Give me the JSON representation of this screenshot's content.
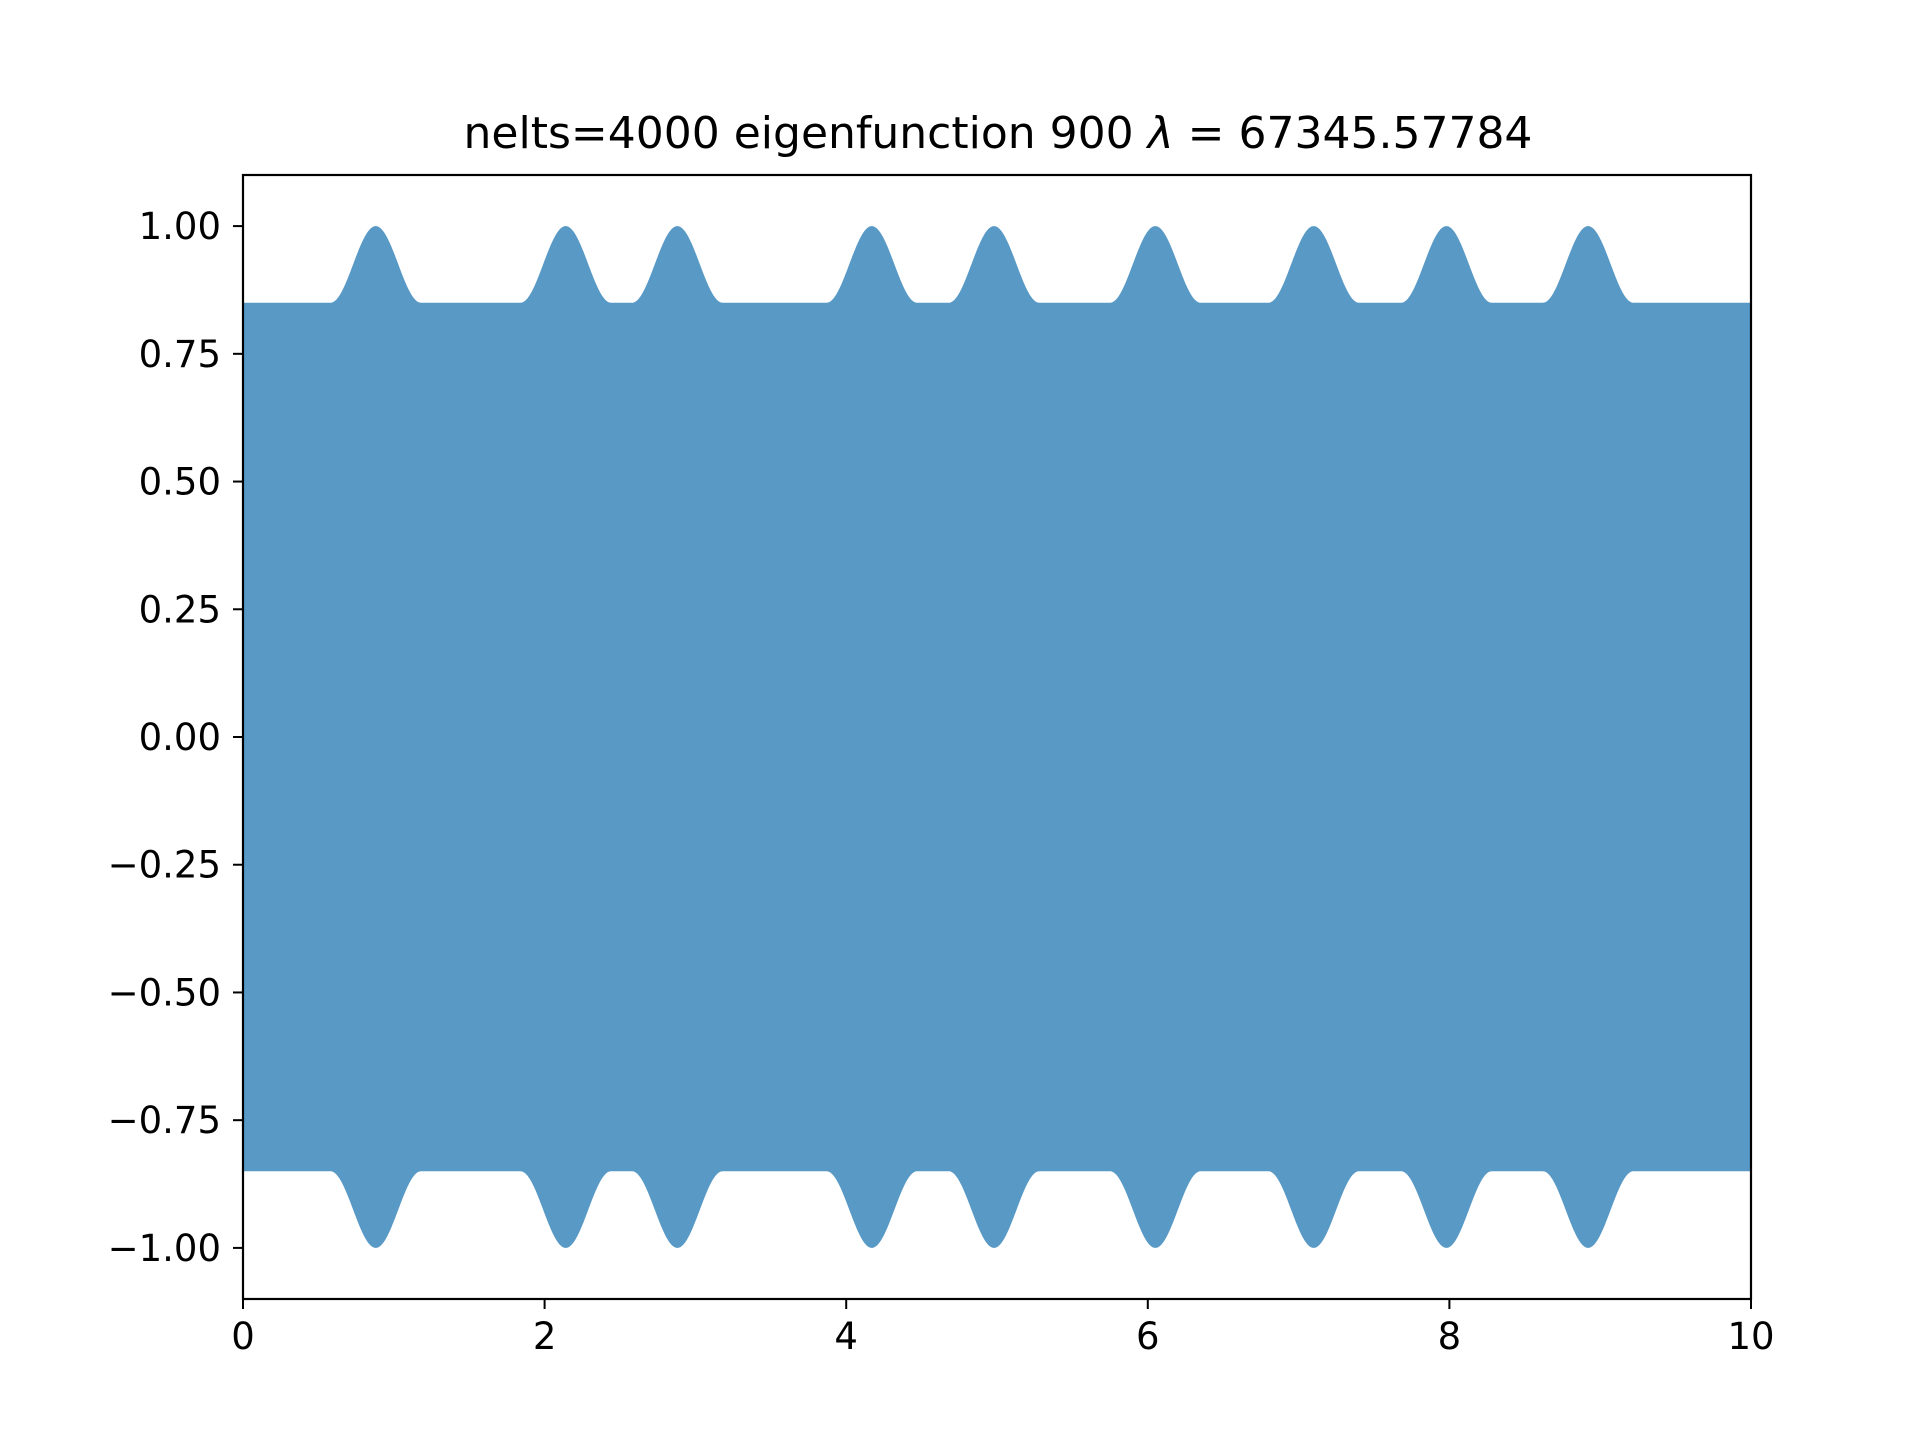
{
  "chart_data": {
    "type": "line",
    "title_prefix": "nelts=4000  eigenfunction 900  ",
    "title_lambda": "λ",
    "title_equals": " = ",
    "title_value": "67345.57784",
    "xlabel": "",
    "ylabel": "",
    "xlim": [
      0,
      10
    ],
    "ylim": [
      -1.1,
      1.1
    ],
    "x_ticks": [
      0,
      2,
      4,
      6,
      8,
      10
    ],
    "x_tick_labels": [
      "0",
      "2",
      "4",
      "6",
      "8",
      "10"
    ],
    "y_ticks": [
      1.0,
      0.75,
      0.5,
      0.25,
      0.0,
      -0.25,
      -0.5,
      -0.75,
      -1.0
    ],
    "y_tick_labels": [
      "1.00",
      "0.75",
      "0.50",
      "0.25",
      "0.00",
      "−0.25",
      "−0.50",
      "−0.75",
      "−1.00"
    ],
    "grid": false,
    "legend": "none",
    "series_color": "#5899c6",
    "series": [
      {
        "envelope_base": 0.85,
        "peak_amplitude": 1.0,
        "peak_centers_x": [
          0.88,
          2.14,
          2.88,
          4.17,
          4.98,
          6.05,
          7.1,
          7.98,
          8.92
        ],
        "peak_half_width_x": 0.3
      }
    ]
  }
}
